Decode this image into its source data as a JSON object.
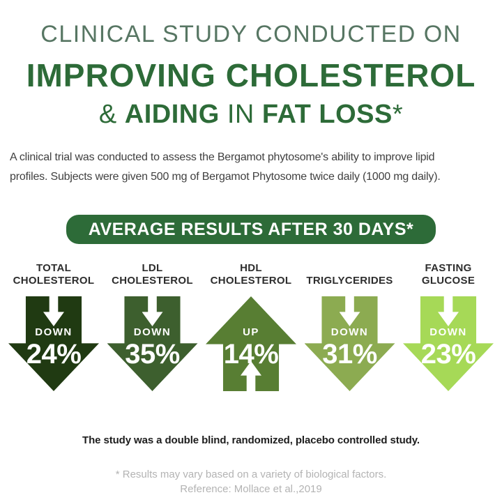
{
  "colors": {
    "title_light_green": "#577663",
    "brand_green": "#2d6b38",
    "banner_bg": "#2d6b38",
    "body_text": "#404040",
    "label_text": "#2d2d2d",
    "footnote_gray": "#b3b3b3",
    "arrow_text": "#ffffff"
  },
  "title": {
    "line1": "CLINICAL STUDY CONDUCTED ON",
    "line2": "IMPROVING CHOLESTEROL",
    "line3": {
      "amp": "&",
      "aiding": "AIDING",
      "in": "IN",
      "fat_loss": "FAT LOSS",
      "asterisk": "*"
    }
  },
  "intro": {
    "line1": "A clinical trial was conducted to assess the Bergamot phytosome's ability to improve lipid",
    "line2": "profiles. Subjects were given 500 mg of Bergamot Phytosome twice daily (1000 mg daily)."
  },
  "banner": {
    "label": "AVERAGE RESULTS AFTER 30 DAYS*"
  },
  "metrics": {
    "items": [
      {
        "label_line1": "TOTAL",
        "label_line2": "CHOLESTEROL",
        "direction": "DOWN",
        "value": "24%",
        "color": "#203a12"
      },
      {
        "label_line1": "LDL",
        "label_line2": "CHOLESTEROL",
        "direction": "DOWN",
        "value": "35%",
        "color": "#3d5f2e"
      },
      {
        "label_line1": "HDL",
        "label_line2": "CHOLESTEROL",
        "direction": "UP",
        "value": "14%",
        "color": "#587e33"
      },
      {
        "label_line1": "",
        "label_line2": "TRIGLYCERIDES",
        "direction": "DOWN",
        "value": "31%",
        "color": "#8cab51"
      },
      {
        "label_line1": "FASTING",
        "label_line2": "GLUCOSE",
        "direction": "DOWN",
        "value": "23%",
        "color": "#a6d957"
      }
    ]
  },
  "footer": {
    "study_note": "The study was a double blind, randomized, placebo controlled study.",
    "disclaimer": "* Results may vary based on a variety of biological factors.",
    "reference": "Reference: Mollace et al.,2019"
  },
  "chart_data": {
    "type": "bar",
    "title": "AVERAGE RESULTS AFTER 30 DAYS*",
    "categories": [
      "TOTAL CHOLESTEROL",
      "LDL CHOLESTEROL",
      "HDL CHOLESTEROL",
      "TRIGLYCERIDES",
      "FASTING GLUCOSE"
    ],
    "values": [
      -24,
      -35,
      14,
      -31,
      -23
    ],
    "value_labels": [
      "DOWN 24%",
      "DOWN 35%",
      "UP 14%",
      "DOWN 31%",
      "DOWN 23%"
    ],
    "unit": "percent change after 30 days",
    "bar_colors": [
      "#203a12",
      "#3d5f2e",
      "#587e33",
      "#8cab51",
      "#a6d957"
    ],
    "legend_position": "none",
    "grid": false
  }
}
